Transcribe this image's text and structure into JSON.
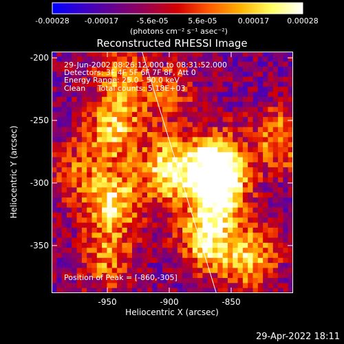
{
  "chart_data": {
    "type": "heatmap",
    "title": "Reconstructed RHESSI Image",
    "xlabel": "Heliocentric X (arcsec)",
    "ylabel": "Heliocentric Y (arcsec)",
    "x_ticks": [
      "-950",
      "-900",
      "-850"
    ],
    "x_tick_values": [
      -950,
      -900,
      -850
    ],
    "y_ticks": [
      "-200",
      "-250",
      "-300",
      "-350"
    ],
    "y_tick_values": [
      -200,
      -250,
      -300,
      -350
    ],
    "xlim": [
      -995,
      -800
    ],
    "ylim": [
      -388,
      -195
    ],
    "colorbar": {
      "ticks": [
        "-0.00028",
        "-0.00017",
        "-5.6e-05",
        "5.6e-05",
        "0.00017",
        "0.00028"
      ],
      "tick_values": [
        -0.00028,
        -0.00017,
        -5.6e-05,
        5.6e-05,
        0.00017,
        0.00028
      ],
      "unit_label": "(photons cm⁻² s⁻¹ asec⁻²)",
      "colormap": [
        "#0000ff",
        "#3a00c8",
        "#6a008c",
        "#9b0050",
        "#d40000",
        "#ff5a00",
        "#ffb000",
        "#ffff60",
        "#ffffff"
      ]
    },
    "annotations": {
      "time_range": "29-Jun-2002 08:26:12.000 to 08:31:52.000",
      "detectors": "Detectors: 3F 4F 5F 6F 7F 8F, Att 0",
      "energy": "Energy Range: 25.0 - 50.0 keV",
      "clean": "Clean     Total counts: 5.18E+03",
      "peak": "Position of Peak = [-860,-305]"
    },
    "limb_line": [
      [
        -922,
        -195
      ],
      [
        -862,
        -388
      ]
    ],
    "sources": [
      {
        "x": -944,
        "y": -258,
        "amp": 0.8
      },
      {
        "x": -945,
        "y": -315,
        "amp": 0.85
      },
      {
        "x": -950,
        "y": -360,
        "amp": 0.6
      },
      {
        "x": -900,
        "y": -290,
        "amp": 1.0
      },
      {
        "x": -862,
        "y": -285,
        "amp": 1.0
      },
      {
        "x": -860,
        "y": -305,
        "amp": 1.0
      },
      {
        "x": -870,
        "y": -345,
        "amp": 0.95
      },
      {
        "x": -835,
        "y": -360,
        "amp": 0.8
      },
      {
        "x": -810,
        "y": -265,
        "amp": 0.7
      },
      {
        "x": -940,
        "y": -215,
        "amp": 0.6
      },
      {
        "x": -975,
        "y": -290,
        "amp": 0.45
      },
      {
        "x": -900,
        "y": -230,
        "amp": 0.45
      }
    ]
  },
  "timestamp": "29-Apr-2022 18:11"
}
